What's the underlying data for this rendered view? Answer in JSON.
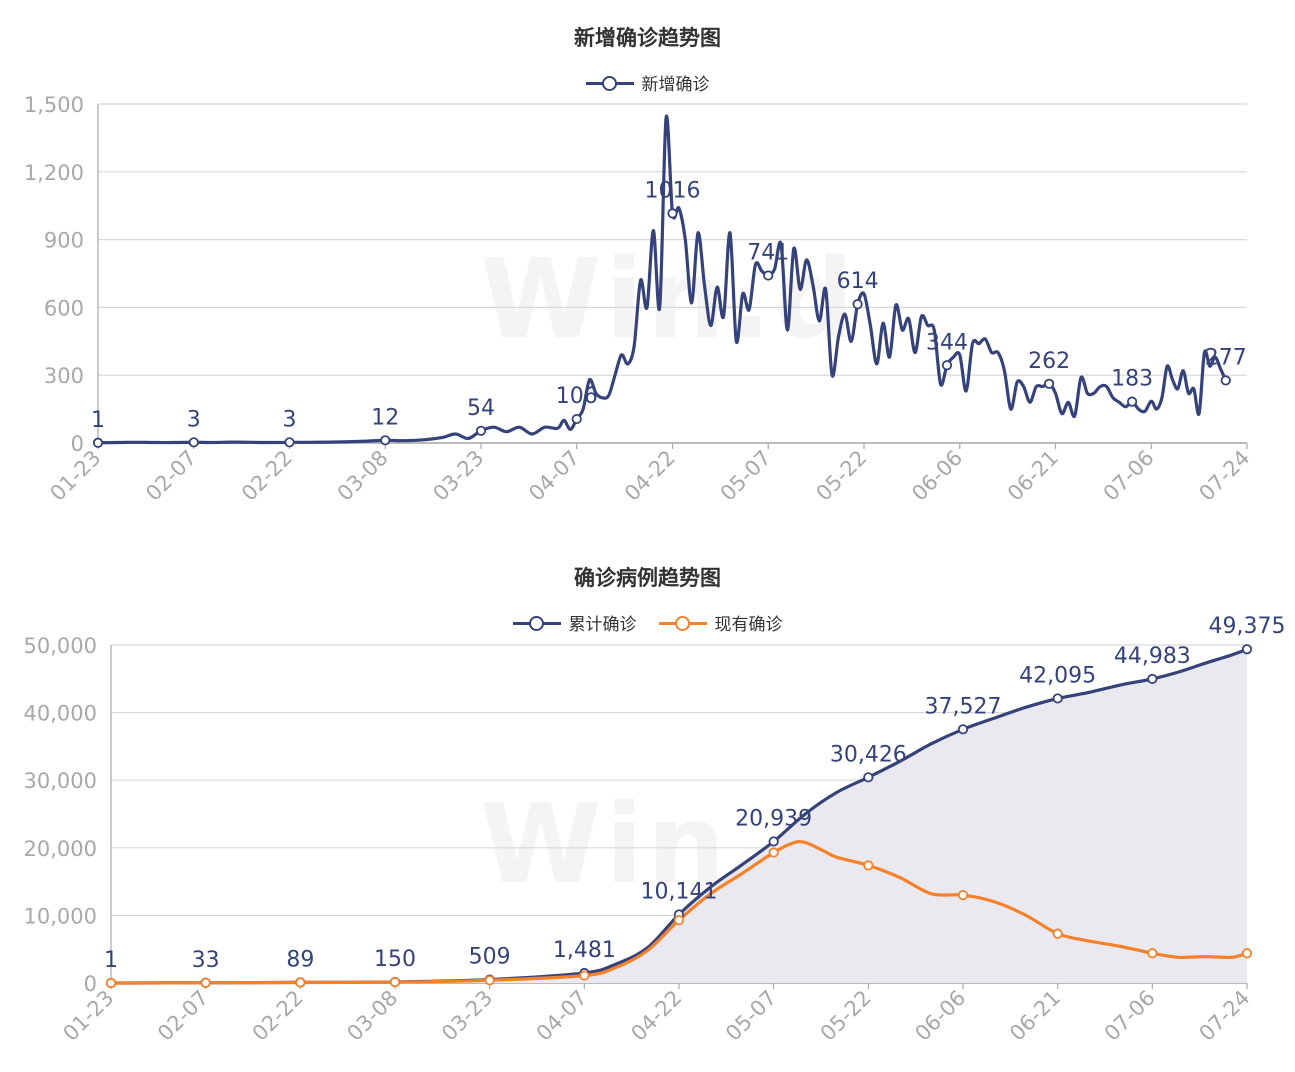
{
  "watermark": "Win.d",
  "colors": {
    "navy": "#35437a",
    "orange": "#f5822b",
    "area": "#e9e9ef",
    "grid": "#d8d8d8",
    "axis": "#a8a8a8"
  },
  "chart_data": [
    {
      "type": "line",
      "title": "新增确诊趋势图",
      "legend": [
        "新增确诊"
      ],
      "x_ticks": [
        "01-23",
        "02-07",
        "02-22",
        "03-08",
        "03-23",
        "04-07",
        "04-22",
        "05-07",
        "05-22",
        "06-06",
        "06-21",
        "07-06",
        "07-24"
      ],
      "ylim": [
        0,
        1500
      ],
      "y_ticks": [
        "0",
        "300",
        "600",
        "900",
        "1,200",
        "1,500"
      ],
      "series": [
        {
          "name": "新增确诊",
          "color": "#35437a",
          "points": [
            [
              "01-23",
              1
            ],
            [
              "01-26",
              2
            ],
            [
              "01-29",
              3
            ],
            [
              "02-01",
              2
            ],
            [
              "02-04",
              2
            ],
            [
              "02-07",
              3
            ],
            [
              "02-10",
              2
            ],
            [
              "02-13",
              4
            ],
            [
              "02-16",
              3
            ],
            [
              "02-19",
              2
            ],
            [
              "02-22",
              3
            ],
            [
              "02-25",
              3
            ],
            [
              "02-28",
              4
            ],
            [
              "03-02",
              5
            ],
            [
              "03-05",
              8
            ],
            [
              "03-08",
              12
            ],
            [
              "03-11",
              10
            ],
            [
              "03-14",
              14
            ],
            [
              "03-17",
              25
            ],
            [
              "03-19",
              40
            ],
            [
              "03-21",
              20
            ],
            [
              "03-23",
              54
            ],
            [
              "03-25",
              70
            ],
            [
              "03-27",
              50
            ],
            [
              "03-29",
              70
            ],
            [
              "03-31",
              40
            ],
            [
              "04-02",
              70
            ],
            [
              "04-04",
              65
            ],
            [
              "04-05",
              100
            ],
            [
              "04-06",
              60
            ],
            [
              "04-07",
              106
            ],
            [
              "04-08",
              150
            ],
            [
              "04-09",
              280
            ],
            [
              "04-10",
              220
            ],
            [
              "04-11",
              200
            ],
            [
              "04-12",
              210
            ],
            [
              "04-13",
              300
            ],
            [
              "04-14",
              390
            ],
            [
              "04-15",
              350
            ],
            [
              "04-16",
              430
            ],
            [
              "04-17",
              720
            ],
            [
              "04-18",
              600
            ],
            [
              "04-19",
              940
            ],
            [
              "04-20",
              600
            ],
            [
              "04-21",
              1440
            ],
            [
              "04-22",
              1016
            ],
            [
              "04-23",
              1040
            ],
            [
              "04-24",
              900
            ],
            [
              "04-25",
              620
            ],
            [
              "04-26",
              930
            ],
            [
              "04-27",
              700
            ],
            [
              "04-28",
              520
            ],
            [
              "04-29",
              690
            ],
            [
              "04-30",
              560
            ],
            [
              "05-01",
              930
            ],
            [
              "05-02",
              450
            ],
            [
              "05-03",
              660
            ],
            [
              "05-04",
              590
            ],
            [
              "05-05",
              790
            ],
            [
              "05-06",
              760
            ],
            [
              "05-07",
              741
            ],
            [
              "05-08",
              770
            ],
            [
              "05-09",
              880
            ],
            [
              "05-10",
              500
            ],
            [
              "05-11",
              860
            ],
            [
              "05-12",
              680
            ],
            [
              "05-13",
              810
            ],
            [
              "05-14",
              700
            ],
            [
              "05-15",
              540
            ],
            [
              "05-16",
              680
            ],
            [
              "05-17",
              300
            ],
            [
              "05-18",
              470
            ],
            [
              "05-19",
              570
            ],
            [
              "05-20",
              450
            ],
            [
              "05-21",
              614
            ],
            [
              "05-22",
              660
            ],
            [
              "05-23",
              520
            ],
            [
              "05-24",
              350
            ],
            [
              "05-25",
              530
            ],
            [
              "05-26",
              380
            ],
            [
              "05-27",
              610
            ],
            [
              "05-28",
              500
            ],
            [
              "05-29",
              550
            ],
            [
              "05-30",
              400
            ],
            [
              "05-31",
              560
            ],
            [
              "06-01",
              520
            ],
            [
              "06-02",
              500
            ],
            [
              "06-03",
              260
            ],
            [
              "06-04",
              344
            ],
            [
              "06-05",
              380
            ],
            [
              "06-06",
              390
            ],
            [
              "06-07",
              230
            ],
            [
              "06-08",
              440
            ],
            [
              "06-09",
              440
            ],
            [
              "06-10",
              460
            ],
            [
              "06-11",
              400
            ],
            [
              "06-12",
              400
            ],
            [
              "06-13",
              320
            ],
            [
              "06-14",
              150
            ],
            [
              "06-15",
              270
            ],
            [
              "06-16",
              250
            ],
            [
              "06-17",
              180
            ],
            [
              "06-18",
              250
            ],
            [
              "06-19",
              250
            ],
            [
              "06-20",
              262
            ],
            [
              "06-21",
              220
            ],
            [
              "06-22",
              130
            ],
            [
              "06-23",
              180
            ],
            [
              "06-24",
              120
            ],
            [
              "06-25",
              290
            ],
            [
              "06-26",
              220
            ],
            [
              "06-27",
              220
            ],
            [
              "06-28",
              250
            ],
            [
              "06-29",
              250
            ],
            [
              "06-30",
              200
            ],
            [
              "07-01",
              180
            ],
            [
              "07-02",
              160
            ],
            [
              "07-03",
              183
            ],
            [
              "07-04",
              150
            ],
            [
              "07-05",
              140
            ],
            [
              "07-06",
              185
            ],
            [
              "07-07",
              150
            ],
            [
              "07-08",
              200
            ],
            [
              "07-09",
              340
            ],
            [
              "07-10",
              280
            ],
            [
              "07-11",
              240
            ],
            [
              "07-12",
              320
            ],
            [
              "07-13",
              220
            ],
            [
              "07-14",
              240
            ],
            [
              "07-15",
              130
            ],
            [
              "07-16",
              400
            ],
            [
              "07-17",
              340
            ],
            [
              "07-18",
              380
            ],
            [
              "07-19",
              330
            ],
            [
              "07-20",
              277
            ]
          ],
          "labels": [
            {
              "x": "01-23",
              "y": 1,
              "text": "1"
            },
            {
              "x": "02-07",
              "y": 3,
              "text": "3"
            },
            {
              "x": "02-22",
              "y": 3,
              "text": "3"
            },
            {
              "x": "03-08",
              "y": 12,
              "text": "12"
            },
            {
              "x": "03-23",
              "y": 54,
              "text": "54"
            },
            {
              "x": "04-07",
              "y": 106,
              "text": "106"
            },
            {
              "x": "04-22",
              "y": 1016,
              "text": "1016"
            },
            {
              "x": "05-07",
              "y": 741,
              "text": "741"
            },
            {
              "x": "05-21",
              "y": 614,
              "text": "614"
            },
            {
              "x": "06-04",
              "y": 344,
              "text": "344"
            },
            {
              "x": "06-20",
              "y": 262,
              "text": "262"
            },
            {
              "x": "07-03",
              "y": 183,
              "text": "183"
            },
            {
              "x": "07-20",
              "y": 277,
              "text": "277"
            }
          ]
        }
      ]
    },
    {
      "type": "line",
      "title": "确诊病例趋势图",
      "legend": [
        "累计确诊",
        "现有确诊"
      ],
      "x_ticks": [
        "01-23",
        "02-07",
        "02-22",
        "03-08",
        "03-23",
        "04-07",
        "04-22",
        "05-07",
        "05-22",
        "06-06",
        "06-21",
        "07-06",
        "07-24"
      ],
      "ylim": [
        0,
        50000
      ],
      "y_ticks": [
        "0",
        "10,000",
        "20,000",
        "30,000",
        "40,000",
        "50,000"
      ],
      "series": [
        {
          "name": "累计确诊",
          "color": "#35437a",
          "area": true,
          "points": [
            [
              "01-23",
              1
            ],
            [
              "02-07",
              33
            ],
            [
              "02-22",
              89
            ],
            [
              "03-08",
              150
            ],
            [
              "03-23",
              509
            ],
            [
              "04-07",
              1481
            ],
            [
              "04-12",
              2800
            ],
            [
              "04-17",
              5200
            ],
            [
              "04-22",
              10141
            ],
            [
              "04-27",
              14200
            ],
            [
              "05-02",
              17500
            ],
            [
              "05-07",
              20939
            ],
            [
              "05-12",
              25000
            ],
            [
              "05-17",
              28200
            ],
            [
              "05-22",
              30426
            ],
            [
              "05-27",
              32800
            ],
            [
              "06-01",
              35400
            ],
            [
              "06-06",
              37527
            ],
            [
              "06-11",
              39200
            ],
            [
              "06-16",
              40800
            ],
            [
              "06-21",
              42095
            ],
            [
              "06-26",
              43000
            ],
            [
              "07-01",
              44100
            ],
            [
              "07-06",
              44983
            ],
            [
              "07-11",
              46000
            ],
            [
              "07-16",
              47300
            ],
            [
              "07-21",
              48500
            ],
            [
              "07-24",
              49375
            ]
          ],
          "labels": [
            {
              "x": "01-23",
              "y": 1,
              "text": "1"
            },
            {
              "x": "02-07",
              "y": 33,
              "text": "33"
            },
            {
              "x": "02-22",
              "y": 89,
              "text": "89"
            },
            {
              "x": "03-08",
              "y": 150,
              "text": "150"
            },
            {
              "x": "03-23",
              "y": 509,
              "text": "509"
            },
            {
              "x": "04-07",
              "y": 1481,
              "text": "1,481"
            },
            {
              "x": "04-22",
              "y": 10141,
              "text": "10,141"
            },
            {
              "x": "05-07",
              "y": 20939,
              "text": "20,939"
            },
            {
              "x": "05-22",
              "y": 30426,
              "text": "30,426"
            },
            {
              "x": "06-06",
              "y": 37527,
              "text": "37,527"
            },
            {
              "x": "06-21",
              "y": 42095,
              "text": "42,095"
            },
            {
              "x": "07-06",
              "y": 44983,
              "text": "44,983"
            },
            {
              "x": "07-24",
              "y": 49375,
              "text": "49,375"
            }
          ]
        },
        {
          "name": "现有确诊",
          "color": "#f5822b",
          "points": [
            [
              "01-23",
              1
            ],
            [
              "02-07",
              30
            ],
            [
              "02-22",
              80
            ],
            [
              "03-08",
              130
            ],
            [
              "03-23",
              400
            ],
            [
              "04-07",
              1100
            ],
            [
              "04-12",
              2300
            ],
            [
              "04-17",
              4800
            ],
            [
              "04-22",
              9300
            ],
            [
              "04-27",
              13200
            ],
            [
              "05-02",
              16200
            ],
            [
              "05-07",
              19300
            ],
            [
              "05-10",
              20700
            ],
            [
              "05-12",
              20800
            ],
            [
              "05-15",
              19500
            ],
            [
              "05-17",
              18600
            ],
            [
              "05-22",
              17400
            ],
            [
              "05-27",
              15600
            ],
            [
              "06-01",
              13200
            ],
            [
              "06-06",
              13000
            ],
            [
              "06-11",
              12000
            ],
            [
              "06-16",
              10000
            ],
            [
              "06-21",
              7300
            ],
            [
              "06-26",
              6200
            ],
            [
              "07-01",
              5400
            ],
            [
              "07-06",
              4400
            ],
            [
              "07-11",
              3800
            ],
            [
              "07-16",
              3900
            ],
            [
              "07-21",
              3800
            ],
            [
              "07-24",
              4400
            ]
          ]
        }
      ]
    }
  ]
}
